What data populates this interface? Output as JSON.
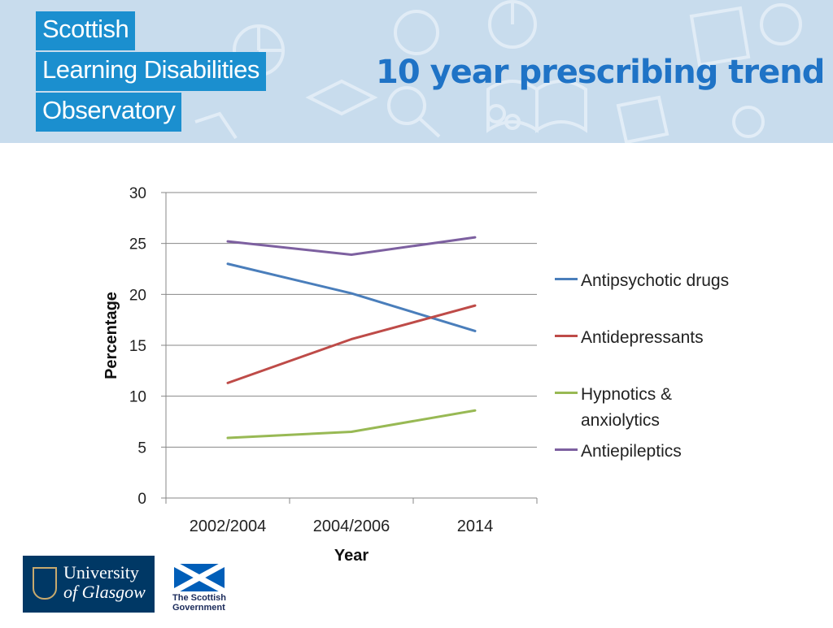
{
  "header": {
    "logo_lines": [
      "Scottish",
      "Learning Disabilities",
      "Observatory"
    ],
    "title": "10 year prescribing trend",
    "bg_color": "#c8dced",
    "logo_color": "#1b8fcf",
    "title_color": "#1f73c6"
  },
  "chart_data": {
    "type": "line",
    "categories": [
      "2002/2004",
      "2004/2006",
      "2014"
    ],
    "series": [
      {
        "name": "Antipsychotic drugs",
        "color": "#4a7ebb",
        "values": [
          23.0,
          20.1,
          16.4
        ]
      },
      {
        "name": "Antidepressants",
        "color": "#be4b48",
        "values": [
          11.3,
          15.6,
          18.9
        ]
      },
      {
        "name": "Hypnotics & anxiolytics",
        "color": "#98b954",
        "values": [
          5.9,
          6.5,
          8.6
        ]
      },
      {
        "name": "Antiepileptics",
        "color": "#7d60a0",
        "values": [
          25.2,
          23.9,
          25.6
        ]
      }
    ],
    "ylim": [
      0,
      30
    ],
    "yticks": [
      0,
      5,
      10,
      15,
      20,
      25,
      30
    ],
    "xlabel": "Year",
    "ylabel": "Percentage",
    "grid": true,
    "legend_position": "right"
  },
  "legend": {
    "items": [
      {
        "lines": [
          "Antipsychotic drugs"
        ],
        "color": "#4a7ebb"
      },
      {
        "lines": [
          "Antidepressants"
        ],
        "color": "#be4b48"
      },
      {
        "lines": [
          "Hypnotics &",
          "anxiolytics"
        ],
        "color": "#98b954"
      },
      {
        "lines": [
          "Antiepileptics"
        ],
        "color": "#7d60a0"
      }
    ]
  },
  "footer": {
    "university": {
      "line1": "University",
      "line2": "of Glasgow"
    },
    "government": {
      "line1": "The Scottish",
      "line2": "Government"
    }
  }
}
